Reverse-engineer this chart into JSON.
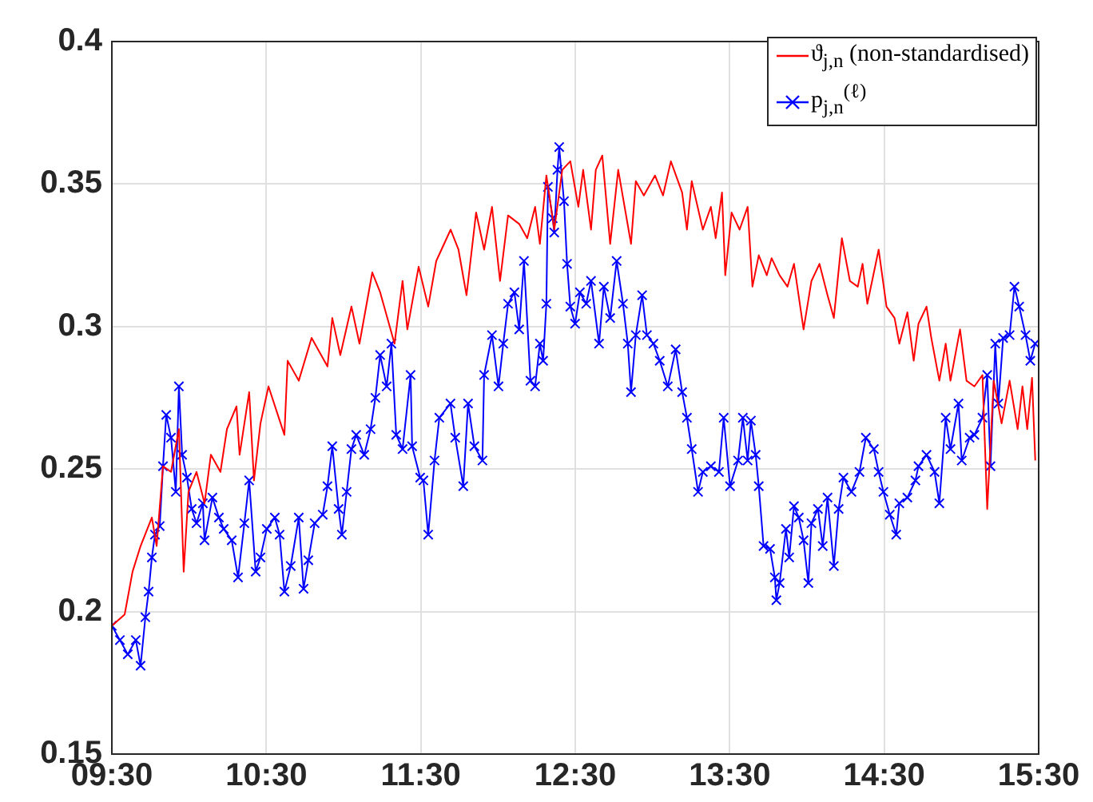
{
  "chart_data": {
    "type": "line",
    "xlim": [
      9.5,
      15.5
    ],
    "xticks": [
      {
        "value": 9.5,
        "label": "09:30"
      },
      {
        "value": 10.5,
        "label": "10:30"
      },
      {
        "value": 11.5,
        "label": "11:30"
      },
      {
        "value": 12.5,
        "label": "12:30"
      },
      {
        "value": 13.5,
        "label": "13:30"
      },
      {
        "value": 14.5,
        "label": "14:30"
      },
      {
        "value": 15.5,
        "label": "15:30"
      }
    ],
    "ylim": [
      0.15,
      0.4
    ],
    "yticks": [
      0.15,
      0.2,
      0.25,
      0.3,
      0.35,
      0.4
    ],
    "grid": true,
    "legend": "top right",
    "series": [
      {
        "name": "ϑ$_{j,n}$ (non-standardised)",
        "color": "#ff0000",
        "marker": "none",
        "line_style": "solid",
        "x": [
          9.5,
          9.583,
          9.634,
          9.686,
          9.759,
          9.79,
          9.831,
          9.883,
          9.934,
          9.965,
          9.996,
          10.048,
          10.1,
          10.141,
          10.203,
          10.245,
          10.307,
          10.327,
          10.389,
          10.42,
          10.462,
          10.514,
          10.617,
          10.638,
          10.71,
          10.793,
          10.896,
          10.927,
          10.979,
          11.051,
          11.103,
          11.186,
          11.237,
          11.33,
          11.382,
          11.413,
          11.486,
          11.548,
          11.6,
          11.693,
          11.744,
          11.796,
          11.858,
          11.91,
          11.961,
          12.013,
          12.065,
          12.137,
          12.189,
          12.24,
          12.271,
          12.313,
          12.364,
          12.416,
          12.468,
          12.52,
          12.551,
          12.602,
          12.633,
          12.675,
          12.726,
          12.778,
          12.861,
          12.892,
          12.944,
          13.016,
          13.068,
          13.119,
          13.192,
          13.223,
          13.254,
          13.326,
          13.378,
          13.409,
          13.45,
          13.471,
          13.512,
          13.564,
          13.616,
          13.647,
          13.688,
          13.74,
          13.771,
          13.823,
          13.874,
          13.916,
          13.978,
          14.029,
          14.081,
          14.133,
          14.174,
          14.226,
          14.278,
          14.329,
          14.36,
          14.391,
          14.464,
          14.515,
          14.567,
          14.598,
          14.65,
          14.691,
          14.722,
          14.774,
          14.805,
          14.857,
          14.898,
          14.929,
          14.991,
          15.033,
          15.084,
          15.136,
          15.167,
          15.209,
          15.26,
          15.312,
          15.364,
          15.395,
          15.426,
          15.457,
          15.478
        ],
        "values": [
          0.195,
          0.199,
          0.214,
          0.223,
          0.233,
          0.223,
          0.251,
          0.249,
          0.264,
          0.214,
          0.242,
          0.249,
          0.238,
          0.255,
          0.249,
          0.264,
          0.272,
          0.255,
          0.277,
          0.246,
          0.266,
          0.279,
          0.262,
          0.288,
          0.281,
          0.296,
          0.286,
          0.303,
          0.29,
          0.307,
          0.294,
          0.319,
          0.312,
          0.294,
          0.316,
          0.299,
          0.321,
          0.307,
          0.323,
          0.334,
          0.327,
          0.311,
          0.34,
          0.327,
          0.342,
          0.316,
          0.339,
          0.336,
          0.331,
          0.342,
          0.329,
          0.353,
          0.334,
          0.355,
          0.358,
          0.342,
          0.355,
          0.334,
          0.355,
          0.36,
          0.329,
          0.355,
          0.329,
          0.351,
          0.346,
          0.353,
          0.346,
          0.358,
          0.347,
          0.334,
          0.351,
          0.334,
          0.342,
          0.331,
          0.347,
          0.318,
          0.34,
          0.334,
          0.342,
          0.314,
          0.325,
          0.318,
          0.324,
          0.318,
          0.314,
          0.322,
          0.299,
          0.316,
          0.322,
          0.311,
          0.303,
          0.331,
          0.316,
          0.314,
          0.322,
          0.308,
          0.327,
          0.307,
          0.303,
          0.294,
          0.305,
          0.288,
          0.301,
          0.307,
          0.296,
          0.281,
          0.294,
          0.281,
          0.299,
          0.281,
          0.279,
          0.283,
          0.236,
          0.281,
          0.266,
          0.281,
          0.264,
          0.279,
          0.264,
          0.282,
          0.253
        ]
      },
      {
        "name": "p$_{j,n}$$^{(ℓ)}$",
        "color": "#0000ff",
        "marker": "cross",
        "line_style": "solid",
        "x": [
          9.5,
          9.552,
          9.603,
          9.655,
          9.686,
          9.717,
          9.738,
          9.759,
          9.779,
          9.81,
          9.831,
          9.852,
          9.883,
          9.914,
          9.934,
          9.955,
          9.986,
          10.017,
          10.048,
          10.089,
          10.1,
          10.151,
          10.193,
          10.224,
          10.276,
          10.317,
          10.358,
          10.389,
          10.431,
          10.462,
          10.503,
          10.555,
          10.586,
          10.617,
          10.658,
          10.71,
          10.741,
          10.772,
          10.813,
          10.865,
          10.896,
          10.927,
          10.968,
          10.989,
          11.02,
          11.051,
          11.082,
          11.134,
          11.175,
          11.206,
          11.237,
          11.279,
          11.31,
          11.341,
          11.382,
          11.434,
          11.444,
          11.496,
          11.517,
          11.548,
          11.589,
          11.62,
          11.692,
          11.723,
          11.775,
          11.806,
          11.847,
          11.899,
          11.91,
          11.961,
          12.003,
          12.034,
          12.065,
          12.106,
          12.137,
          12.168,
          12.21,
          12.24,
          12.271,
          12.292,
          12.313,
          12.323,
          12.354,
          12.364,
          12.385,
          12.396,
          12.427,
          12.447,
          12.468,
          12.499,
          12.53,
          12.571,
          12.602,
          12.654,
          12.685,
          12.726,
          12.768,
          12.809,
          12.84,
          12.861,
          12.892,
          12.933,
          12.964,
          13.006,
          13.047,
          13.099,
          13.15,
          13.192,
          13.223,
          13.254,
          13.295,
          13.326,
          13.378,
          13.43,
          13.461,
          13.502,
          13.554,
          13.585,
          13.616,
          13.637,
          13.668,
          13.688,
          13.719,
          13.761,
          13.792,
          13.802,
          13.823,
          13.864,
          13.885,
          13.916,
          13.947,
          13.978,
          14.009,
          14.029,
          14.071,
          14.102,
          14.133,
          14.174,
          14.205,
          14.236,
          14.288,
          14.34,
          14.381,
          14.433,
          14.464,
          14.495,
          14.536,
          14.578,
          14.598,
          14.65,
          14.702,
          14.722,
          14.774,
          14.826,
          14.857,
          14.898,
          14.929,
          14.981,
          15.002,
          15.053,
          15.084,
          15.136,
          15.167,
          15.188,
          15.219,
          15.239,
          15.27,
          15.312,
          15.343,
          15.374,
          15.415,
          15.446,
          15.477
        ],
        "values": [
          0.195,
          0.19,
          0.185,
          0.19,
          0.181,
          0.198,
          0.207,
          0.219,
          0.227,
          0.23,
          0.251,
          0.269,
          0.261,
          0.242,
          0.279,
          0.255,
          0.247,
          0.236,
          0.231,
          0.238,
          0.225,
          0.24,
          0.233,
          0.229,
          0.225,
          0.212,
          0.231,
          0.246,
          0.214,
          0.219,
          0.229,
          0.233,
          0.227,
          0.207,
          0.216,
          0.233,
          0.208,
          0.218,
          0.231,
          0.234,
          0.244,
          0.258,
          0.236,
          0.227,
          0.242,
          0.257,
          0.262,
          0.255,
          0.264,
          0.275,
          0.29,
          0.279,
          0.294,
          0.262,
          0.257,
          0.283,
          0.258,
          0.247,
          0.246,
          0.227,
          0.253,
          0.268,
          0.273,
          0.261,
          0.244,
          0.273,
          0.258,
          0.253,
          0.283,
          0.297,
          0.279,
          0.294,
          0.308,
          0.312,
          0.299,
          0.323,
          0.281,
          0.279,
          0.294,
          0.288,
          0.308,
          0.349,
          0.338,
          0.333,
          0.355,
          0.363,
          0.344,
          0.322,
          0.307,
          0.301,
          0.312,
          0.308,
          0.316,
          0.294,
          0.314,
          0.303,
          0.323,
          0.308,
          0.294,
          0.277,
          0.297,
          0.311,
          0.297,
          0.294,
          0.288,
          0.279,
          0.292,
          0.277,
          0.268,
          0.257,
          0.242,
          0.249,
          0.251,
          0.249,
          0.268,
          0.244,
          0.253,
          0.268,
          0.253,
          0.267,
          0.255,
          0.244,
          0.223,
          0.222,
          0.212,
          0.204,
          0.21,
          0.229,
          0.219,
          0.237,
          0.233,
          0.225,
          0.21,
          0.231,
          0.236,
          0.223,
          0.24,
          0.216,
          0.236,
          0.247,
          0.242,
          0.249,
          0.261,
          0.257,
          0.249,
          0.242,
          0.234,
          0.227,
          0.238,
          0.24,
          0.246,
          0.251,
          0.255,
          0.249,
          0.238,
          0.268,
          0.257,
          0.273,
          0.253,
          0.261,
          0.262,
          0.268,
          0.283,
          0.251,
          0.294,
          0.273,
          0.296,
          0.297,
          0.314,
          0.307,
          0.297,
          0.288,
          0.294
        ]
      }
    ]
  }
}
